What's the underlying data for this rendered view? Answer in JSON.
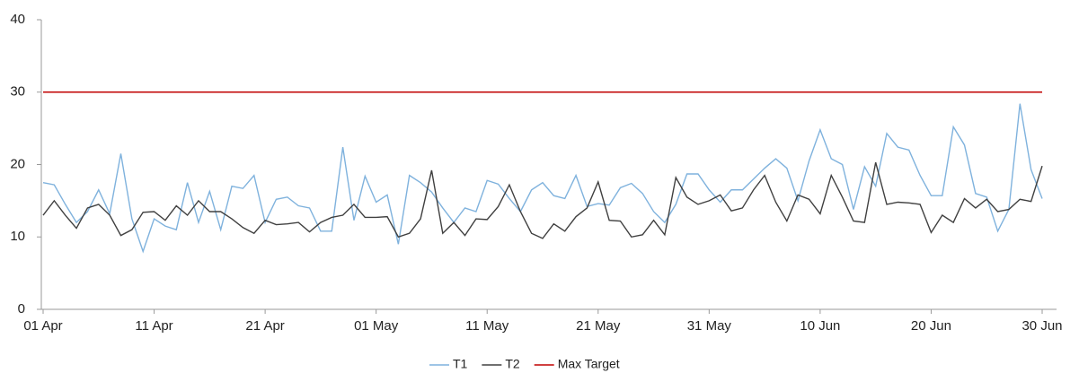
{
  "chart_data": {
    "type": "line",
    "categories": [
      "01 Apr",
      null,
      null,
      null,
      null,
      null,
      null,
      null,
      null,
      null,
      "11 Apr",
      null,
      null,
      null,
      null,
      null,
      null,
      null,
      null,
      null,
      "21 Apr",
      null,
      null,
      null,
      null,
      null,
      null,
      null,
      null,
      null,
      "01 May",
      null,
      null,
      null,
      null,
      null,
      null,
      null,
      null,
      null,
      "11 May",
      null,
      null,
      null,
      null,
      null,
      null,
      null,
      null,
      null,
      "21 May",
      null,
      null,
      null,
      null,
      null,
      null,
      null,
      null,
      null,
      "31 May",
      null,
      null,
      null,
      null,
      null,
      null,
      null,
      null,
      null,
      "10 Jun",
      null,
      null,
      null,
      null,
      null,
      null,
      null,
      null,
      null,
      "20 Jun",
      null,
      null,
      null,
      null,
      null,
      null,
      null,
      null,
      null,
      "30 Jun"
    ],
    "series": [
      {
        "name": "T1",
        "color": "#7fb2dd",
        "values": [
          17.5,
          17.2,
          14.5,
          12,
          13.5,
          16.5,
          13.2,
          21.5,
          12.5,
          8,
          12.5,
          11.5,
          11,
          17.5,
          12,
          16.3,
          11,
          17,
          16.7,
          18.5,
          12,
          15.2,
          15.5,
          14.3,
          14,
          10.8,
          10.8,
          22.4,
          12.3,
          18.4,
          14.8,
          15.8,
          9,
          18.5,
          17.5,
          16.2,
          14,
          12,
          14,
          13.5,
          17.8,
          17.3,
          15.3,
          13.5,
          16.5,
          17.5,
          15.7,
          15.3,
          18.5,
          14.2,
          14.6,
          14.4,
          16.8,
          17.4,
          16,
          13.5,
          12,
          14.5,
          18.7,
          18.7,
          16.5,
          14.8,
          16.5,
          16.5,
          18,
          19.5,
          20.8,
          19.5,
          15,
          20.5,
          24.8,
          20.8,
          20,
          13.8,
          19.7,
          17,
          24.3,
          22.4,
          22,
          18.5,
          15.7,
          15.7,
          25.2,
          22.7,
          16,
          15.5,
          10.8,
          13.8,
          28.4,
          19.3,
          15.3
        ]
      },
      {
        "name": "T2",
        "color": "#404040",
        "values": [
          13,
          15,
          13,
          11.2,
          14,
          14.5,
          13,
          10.2,
          11,
          13.4,
          13.5,
          12.3,
          14.3,
          13,
          15,
          13.5,
          13.5,
          12.5,
          11.3,
          10.5,
          12.3,
          11.7,
          11.8,
          12,
          10.7,
          12,
          12.7,
          13,
          14.5,
          12.7,
          12.7,
          12.8,
          10,
          10.5,
          12.5,
          19.2,
          10.5,
          12,
          10.2,
          12.5,
          12.4,
          14.2,
          17.2,
          13.5,
          10.5,
          9.8,
          11.8,
          10.8,
          12.8,
          14,
          17.6,
          12.3,
          12.2,
          10,
          10.3,
          12.3,
          10.3,
          18.2,
          15.5,
          14.5,
          15,
          15.8,
          13.6,
          14,
          16.5,
          18.5,
          14.8,
          12.2,
          15.8,
          15.2,
          13.2,
          18.5,
          15.5,
          12.2,
          12,
          20.3,
          14.5,
          14.8,
          14.7,
          14.5,
          10.6,
          13,
          12,
          15.3,
          14,
          15.2,
          13.5,
          13.8,
          15.2,
          14.9,
          19.8
        ]
      },
      {
        "name": "Max Target",
        "color": "#c00000",
        "values": [
          30,
          30,
          30,
          30,
          30,
          30,
          30,
          30,
          30,
          30,
          30,
          30,
          30,
          30,
          30,
          30,
          30,
          30,
          30,
          30,
          30,
          30,
          30,
          30,
          30,
          30,
          30,
          30,
          30,
          30,
          30,
          30,
          30,
          30,
          30,
          30,
          30,
          30,
          30,
          30,
          30,
          30,
          30,
          30,
          30,
          30,
          30,
          30,
          30,
          30,
          30,
          30,
          30,
          30,
          30,
          30,
          30,
          30,
          30,
          30,
          30,
          30,
          30,
          30,
          30,
          30,
          30,
          30,
          30,
          30,
          30,
          30,
          30,
          30,
          30,
          30,
          30,
          30,
          30,
          30,
          30,
          30,
          30,
          30,
          30,
          30,
          30,
          30,
          30,
          30,
          30
        ]
      }
    ],
    "ylim": [
      0,
      40
    ],
    "yticks": [
      0,
      10,
      20,
      30,
      40
    ],
    "grid": false,
    "legend": "bottom"
  }
}
